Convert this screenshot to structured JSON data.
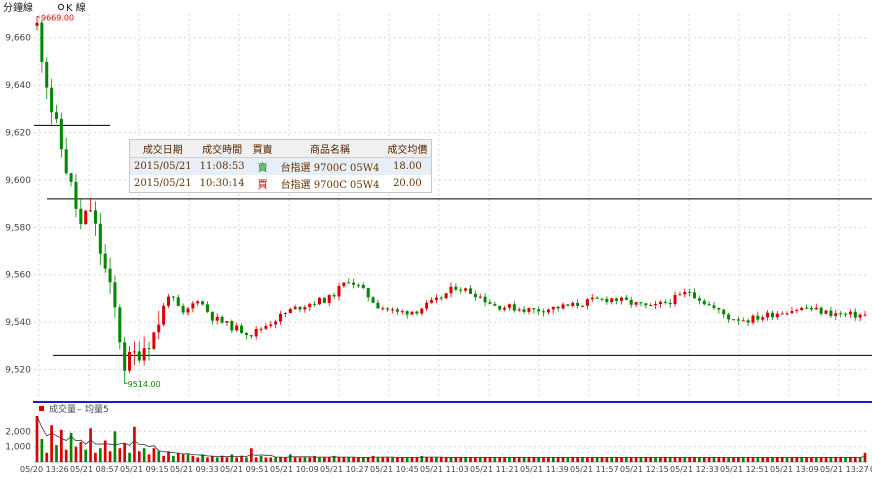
{
  "header": {
    "tab_minute": "分鐘線",
    "tab_k": "K 線"
  },
  "chart_data": {
    "type": "candlestick",
    "price_axis": {
      "ticks": [
        9520,
        9540,
        9560,
        9580,
        9600,
        9620,
        9640,
        9660
      ],
      "ylim": [
        9508,
        9670
      ]
    },
    "x_ticks": [
      "05/20 13:26",
      "05/21 08:57",
      "05/21 09:15",
      "05/21 09:33",
      "05/21 09:51",
      "05/21 10:09",
      "05/21 10:27",
      "05/21 10:45",
      "05/21 11:03",
      "05/21 11:21",
      "05/21 11:39",
      "05/21 11:57",
      "05/21 12:15",
      "05/21 12:33",
      "05/21 12:51",
      "05/21 13:09",
      "05/21 13:27",
      "05/21 1"
    ],
    "high_label": "9669.00",
    "low_label": "9514.00",
    "high_value": 9669,
    "low_value": 9514,
    "reference_lines": [
      {
        "value": 9623,
        "span": "partial"
      },
      {
        "value": 9592,
        "span": "full"
      },
      {
        "value": 9526,
        "span": "full"
      }
    ],
    "price_anchors": [
      [
        0,
        9665
      ],
      [
        3,
        9630
      ],
      [
        6,
        9605
      ],
      [
        9,
        9580
      ],
      [
        11,
        9588
      ],
      [
        13,
        9570
      ],
      [
        16,
        9545
      ],
      [
        18,
        9522
      ],
      [
        21,
        9528
      ],
      [
        24,
        9535
      ],
      [
        27,
        9552
      ],
      [
        30,
        9543
      ],
      [
        33,
        9550
      ],
      [
        36,
        9542
      ],
      [
        40,
        9538
      ],
      [
        44,
        9535
      ],
      [
        48,
        9540
      ],
      [
        52,
        9545
      ],
      [
        56,
        9548
      ],
      [
        60,
        9550
      ],
      [
        64,
        9558
      ],
      [
        66,
        9555
      ],
      [
        70,
        9547
      ],
      [
        74,
        9544
      ],
      [
        78,
        9545
      ],
      [
        82,
        9549
      ],
      [
        86,
        9555
      ],
      [
        90,
        9552
      ],
      [
        94,
        9547
      ],
      [
        98,
        9546
      ],
      [
        102,
        9545
      ],
      [
        106,
        9546
      ],
      [
        110,
        9547
      ],
      [
        114,
        9549
      ],
      [
        118,
        9550
      ],
      [
        122,
        9548
      ],
      [
        126,
        9546
      ],
      [
        130,
        9549
      ],
      [
        134,
        9553
      ],
      [
        138,
        9547
      ],
      [
        142,
        9542
      ],
      [
        146,
        9541
      ],
      [
        150,
        9543
      ],
      [
        154,
        9545
      ],
      [
        158,
        9546
      ],
      [
        162,
        9544
      ],
      [
        166,
        9543
      ],
      [
        170,
        9543
      ]
    ],
    "volume": {
      "legend_volume": "成交量",
      "legend_ma": "均量5",
      "dash": "–",
      "ticks": [
        1000,
        2000
      ],
      "ylim": [
        0,
        3000
      ],
      "bars": [
        3000,
        1500,
        600,
        2400,
        1100,
        2100,
        800,
        1900,
        1000,
        1300,
        800,
        2200,
        600,
        900,
        1400,
        700,
        2000,
        900,
        1200,
        600,
        2300,
        700,
        900,
        500,
        900,
        700,
        400,
        700,
        400,
        600,
        500,
        500,
        400,
        300,
        500,
        300,
        400,
        300,
        400,
        300,
        500,
        300,
        400,
        300,
        900,
        300,
        400,
        300,
        300,
        300,
        300,
        300,
        500,
        300,
        300,
        300,
        300,
        400,
        300,
        300,
        300,
        400,
        300,
        300,
        300,
        300,
        300,
        300,
        300,
        400,
        300,
        300,
        300,
        300,
        300,
        300,
        300,
        300,
        300,
        400,
        300,
        300,
        300,
        300,
        300,
        300,
        300,
        300,
        300,
        300,
        300,
        300,
        300,
        300,
        300,
        300,
        300,
        300,
        300,
        300,
        300,
        300,
        300,
        300,
        300,
        300,
        300,
        300,
        300,
        300,
        300,
        300,
        300,
        300,
        300,
        300,
        300,
        300,
        300,
        300,
        300,
        300,
        300,
        300,
        300,
        300,
        300,
        300,
        300,
        300,
        300,
        300,
        300,
        300,
        300,
        300,
        300,
        300,
        300,
        300,
        300,
        300,
        300,
        300,
        300,
        300,
        300,
        300,
        300,
        300,
        300,
        300,
        300,
        300,
        300,
        300,
        300,
        300,
        300,
        300,
        300,
        300,
        300,
        300,
        300,
        300,
        300,
        300,
        300,
        300,
        600
      ]
    },
    "colors": {
      "up": "#dd0000",
      "down": "#008800",
      "ma": "#333333",
      "divider": "#1c1ccc"
    }
  },
  "trade_table": {
    "headers": [
      "成交日期",
      "成交時間",
      "買賣",
      "商品名稱",
      "成交均價"
    ],
    "rows": [
      {
        "date": "2015/05/21",
        "time": "11:08:53",
        "side": "賣",
        "product": "台指選 9700C 05W4",
        "price": "18.00"
      },
      {
        "date": "2015/05/21",
        "time": "10:30:14",
        "side": "買",
        "product": "台指選 9700C 05W4",
        "price": "20.00"
      }
    ]
  }
}
